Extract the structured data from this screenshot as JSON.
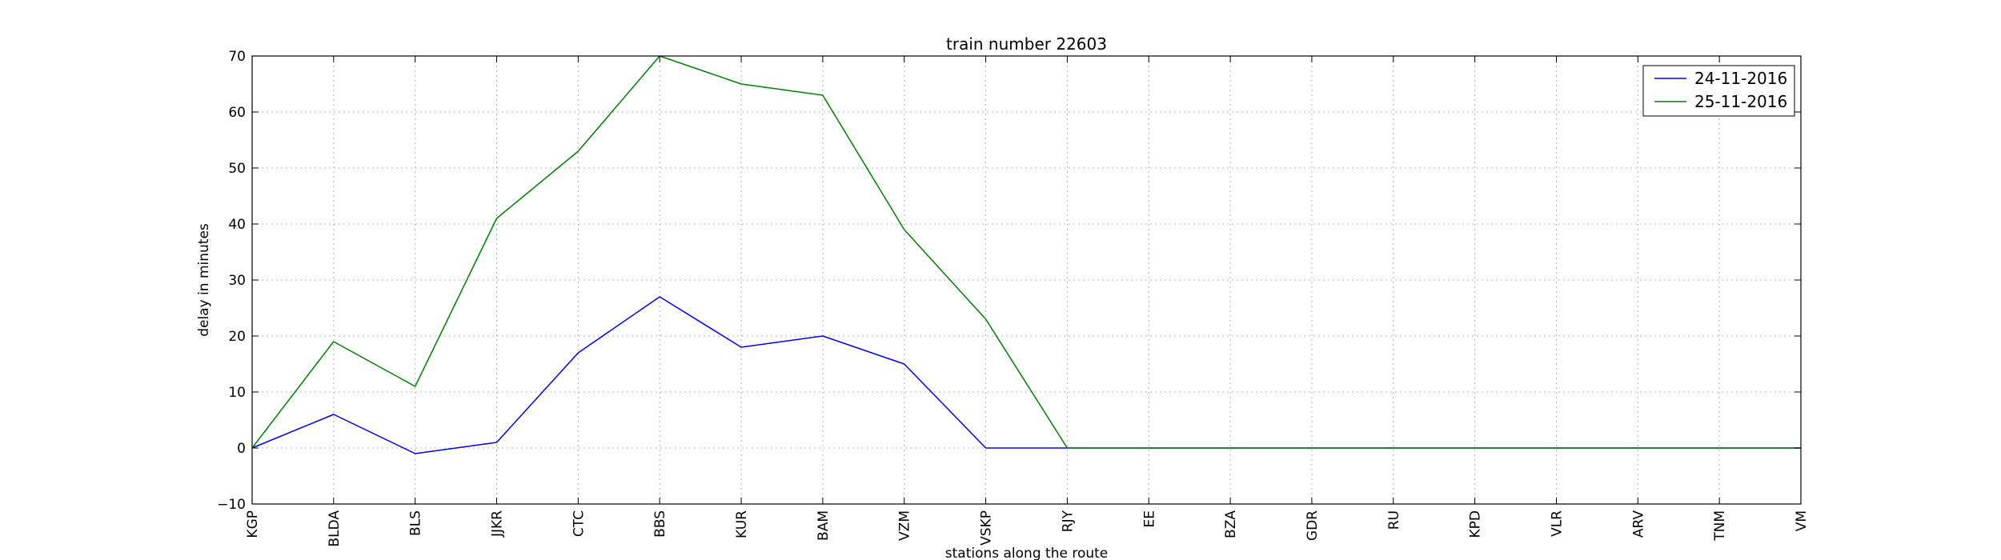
{
  "chart_data": {
    "type": "line",
    "title": "train number 22603",
    "xlabel": "stations along the route",
    "ylabel": "delay in minutes",
    "categories": [
      "KGP",
      "BLDA",
      "BLS",
      "JJKR",
      "CTC",
      "BBS",
      "KUR",
      "BAM",
      "VZM",
      "VSKP",
      "RJY",
      "EE",
      "BZA",
      "GDR",
      "RU",
      "KPD",
      "VLR",
      "ARV",
      "TNM",
      "VM"
    ],
    "ylim": [
      -10,
      70
    ],
    "yticks": [
      -10,
      0,
      10,
      20,
      30,
      40,
      50,
      60,
      70
    ],
    "grid": true,
    "legend_position": "top-right",
    "series": [
      {
        "name": "24-11-2016",
        "color": "#0000ff",
        "values": [
          0,
          6,
          -1,
          1,
          17,
          27,
          18,
          20,
          15,
          0,
          0,
          0,
          0,
          0,
          0,
          0,
          0,
          0,
          0,
          0
        ]
      },
      {
        "name": "25-11-2016",
        "color": "#008000",
        "values": [
          0,
          19,
          11,
          41,
          53,
          70,
          65,
          63,
          39,
          23,
          0,
          0,
          0,
          0,
          0,
          0,
          0,
          0,
          0,
          0
        ]
      }
    ]
  }
}
